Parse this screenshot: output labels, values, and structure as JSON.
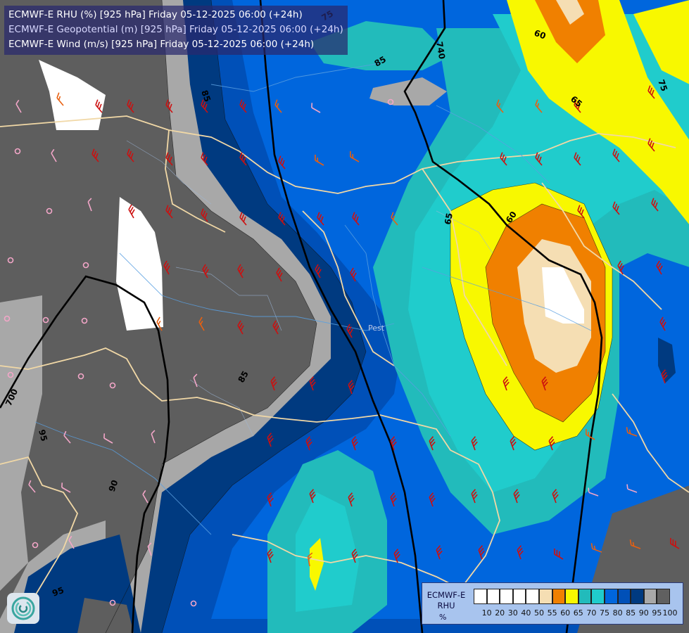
{
  "header": {
    "lines": [
      {
        "text": "ECMWF-E RHU (%) [925 hPa] Friday 05-12-2025 06:00 (+24h)",
        "color": "#ffffff"
      },
      {
        "text": "ECMWF-E Geopotential (m) [925 hPa] Friday 05-12-2025 06:00 (+24h)",
        "color": "#d8d8ff"
      },
      {
        "text": "ECMWF-E Wind (m/s) [925 hPa] Friday 05-12-2025 06:00 (+24h)",
        "color": "#ffffff"
      }
    ]
  },
  "legend": {
    "model": "ECMWF-E",
    "variable": "RHU",
    "unit": "%",
    "colors": [
      "#ffffff",
      "#ffffff",
      "#ffffff",
      "#ffffff",
      "#ffffff",
      "#f5deb3",
      "#f08000",
      "#f8f800",
      "#22bbbb",
      "#20cccc",
      "#0066dd",
      "#0050b8",
      "#003a80",
      "#a8a8a8",
      "#606060"
    ],
    "ticks": [
      "10",
      "20",
      "30",
      "40",
      "50",
      "55",
      "60",
      "65",
      "70",
      "75",
      "80",
      "85",
      "90",
      "95",
      "100"
    ]
  },
  "map": {
    "contour_labels": [
      "740",
      "700",
      "60",
      "60",
      "65",
      "65",
      "75",
      "75",
      "85",
      "85",
      "85",
      "90",
      "95",
      "95"
    ],
    "city_label": "Pest"
  },
  "logo": {
    "icon": "ecmwf-swirl-icon"
  }
}
